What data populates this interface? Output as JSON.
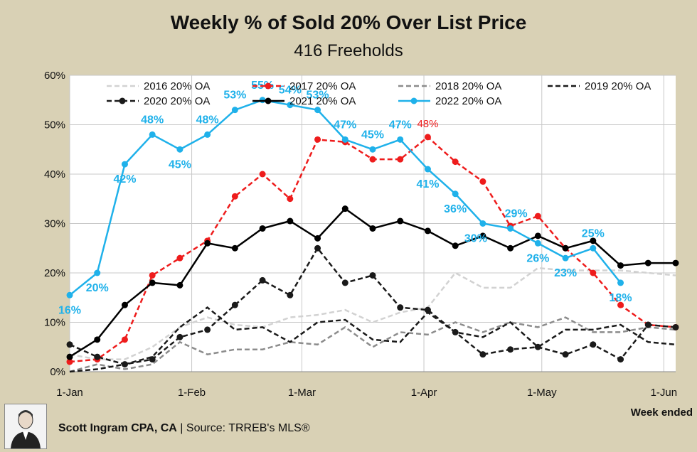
{
  "title": "Weekly % of Sold 20% Over List Price",
  "subtitle": "416 Freeholds",
  "x_axis_caption": "Week ended",
  "footer": {
    "author": "Scott Ingram CPA, CA",
    "separator": "|",
    "source": "Source: TRREB's MLS®",
    "avatar_icon": "person-portrait-icon"
  },
  "colors": {
    "background": "#d9d1b5",
    "plot_background": "#ffffff",
    "grid": "#c8c8c8"
  },
  "chart_data": {
    "type": "line",
    "x_tick_labels": [
      "1-Jan",
      "1-Feb",
      "1-Mar",
      "1-Apr",
      "1-May",
      "1-Jun"
    ],
    "x_tick_weeks": [
      0,
      4.43,
      8.43,
      12.86,
      17.14,
      21.57
    ],
    "ylim": [
      0,
      60
    ],
    "y_ticks": [
      0,
      10,
      20,
      30,
      40,
      50,
      60
    ],
    "y_tick_labels": [
      "0%",
      "10%",
      "20%",
      "30%",
      "40%",
      "50%",
      "60%"
    ],
    "grid": true,
    "legend_position": "top",
    "series": [
      {
        "name": "2016 20% OA",
        "color": "#d2d2d2",
        "dash": true,
        "markers": false,
        "x": [
          0,
          1,
          2,
          3,
          4,
          5,
          6,
          7,
          8,
          9,
          10,
          11,
          12,
          13,
          14,
          15,
          16,
          17,
          18,
          19,
          20,
          21,
          22
        ],
        "values": [
          3.5,
          2.5,
          2.5,
          5,
          9,
          11,
          9.5,
          9,
          11,
          11.5,
          12.5,
          10,
          12,
          13,
          20,
          17,
          17,
          21,
          20.5,
          20.5,
          20.5,
          20,
          19.5
        ]
      },
      {
        "name": "2017 20% OA",
        "color": "#ee1c1c",
        "dash": true,
        "markers": true,
        "x": [
          0,
          1,
          2,
          3,
          4,
          5,
          6,
          7,
          8,
          9,
          10,
          11,
          12,
          13,
          14,
          15,
          16,
          17,
          18,
          19,
          20,
          21,
          22
        ],
        "values": [
          2,
          2.5,
          6.5,
          19.5,
          23,
          26.5,
          35.5,
          40,
          35,
          47,
          46.5,
          43,
          43,
          47.5,
          42.5,
          38.5,
          29.5,
          31.5,
          25,
          20,
          13.5,
          9.5,
          9
        ],
        "labels": {
          "13": "48%"
        }
      },
      {
        "name": "2018 20% OA",
        "color": "#8c8c8c",
        "dash": true,
        "markers": false,
        "x": [
          0,
          1,
          2,
          3,
          4,
          5,
          6,
          7,
          8,
          9,
          10,
          11,
          12,
          13,
          14,
          15,
          16,
          17,
          18,
          19,
          20,
          21,
          22
        ],
        "values": [
          0,
          1.5,
          0.5,
          1.5,
          6,
          3.5,
          4.5,
          4.5,
          6,
          5.5,
          9,
          5,
          8,
          7.5,
          10,
          8,
          10,
          9,
          11,
          8,
          8,
          9,
          8.5
        ]
      },
      {
        "name": "2019 20% OA",
        "color": "#1a1a1a",
        "dash": true,
        "markers": false,
        "x": [
          0,
          1,
          2,
          3,
          4,
          5,
          6,
          7,
          8,
          9,
          10,
          11,
          12,
          13,
          14,
          15,
          16,
          17,
          18,
          19,
          20,
          21,
          22
        ],
        "values": [
          0,
          0.5,
          1.5,
          3,
          9,
          13,
          8.5,
          9,
          6,
          10,
          10.5,
          6.5,
          6,
          12,
          8,
          7,
          10,
          5,
          8.5,
          8.5,
          9.5,
          6,
          5.5
        ]
      },
      {
        "name": "2020 20% OA",
        "color": "#1a1a1a",
        "dash": true,
        "markers": true,
        "x": [
          0,
          1,
          2,
          3,
          4,
          5,
          6,
          7,
          8,
          9,
          10,
          11,
          12,
          13,
          14,
          15,
          16,
          17,
          18,
          19,
          20,
          21,
          22
        ],
        "values": [
          5.5,
          3,
          1.5,
          2.5,
          7,
          8.5,
          13.5,
          18.5,
          15.5,
          25,
          18,
          19.5,
          13,
          12.5,
          8,
          3.5,
          4.5,
          5,
          3.5,
          5.5,
          2.5,
          9.5,
          9
        ]
      },
      {
        "name": "2021 20% OA",
        "color": "#000000",
        "dash": false,
        "markers": true,
        "x": [
          0,
          1,
          2,
          3,
          4,
          5,
          6,
          7,
          8,
          9,
          10,
          11,
          12,
          13,
          14,
          15,
          16,
          17,
          18,
          19,
          20,
          21,
          22
        ],
        "values": [
          3,
          6.5,
          13.5,
          18,
          17.5,
          26,
          25,
          29,
          30.5,
          27,
          33,
          29,
          30.5,
          28.5,
          25.5,
          27.5,
          25,
          27.5,
          25,
          26.5,
          21.5,
          22,
          22
        ]
      },
      {
        "name": "2022 20% OA",
        "color": "#1fb1ea",
        "dash": false,
        "markers": true,
        "x": [
          0,
          1,
          2,
          3,
          4,
          5,
          6,
          7,
          8,
          9,
          10,
          11,
          12,
          13,
          14,
          15,
          16,
          17,
          18,
          19,
          20
        ],
        "values": [
          15.5,
          20,
          42,
          48,
          45,
          48,
          53,
          55,
          54,
          53,
          47,
          45,
          47,
          41,
          36,
          30,
          29,
          26,
          23,
          25,
          18
        ],
        "labels": {
          "0": "16%",
          "1": "20%",
          "2": "42%",
          "3": "48%",
          "4": "45%",
          "5": "48%",
          "6": "53%",
          "7": "55%",
          "8": "54%",
          "9": "53%",
          "10": "47%",
          "11": "45%",
          "12": "47%",
          "13": "41%",
          "14": "36%",
          "15": "30%",
          "16": "29%",
          "17": "26%",
          "18": "23%",
          "19": "25%",
          "20": "18%"
        }
      }
    ]
  }
}
